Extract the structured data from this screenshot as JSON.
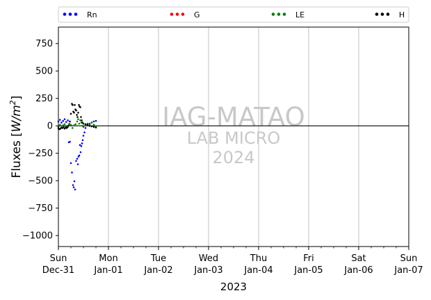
{
  "chart_data": {
    "type": "scatter",
    "title": "",
    "xlabel": "2023",
    "ylabel_main": "Fluxes [",
    "ylabel_unit": "W/m",
    "ylabel_exp": "2",
    "ylabel_close": "]",
    "xlim": [
      "2022-12-31",
      "2023-01-07"
    ],
    "ylim": [
      -1100,
      900
    ],
    "yticks": [
      750,
      500,
      250,
      0,
      -250,
      -500,
      -750,
      -1000
    ],
    "xticks": [
      {
        "day": "Sun",
        "date": "Dec-31"
      },
      {
        "day": "Mon",
        "date": "Jan-01"
      },
      {
        "day": "Tue",
        "date": "Jan-02"
      },
      {
        "day": "Wed",
        "date": "Jan-03"
      },
      {
        "day": "Thu",
        "date": "Jan-04"
      },
      {
        "day": "Fri",
        "date": "Jan-05"
      },
      {
        "day": "Sat",
        "date": "Jan-06"
      },
      {
        "day": "Sun",
        "date": "Jan-07"
      }
    ],
    "grid": "vertical",
    "zero_line": true,
    "legend_position": "top (horizontal, above plot)",
    "watermark": [
      "IAG-MATAO",
      "LAB MICRO",
      "2024"
    ],
    "series": [
      {
        "name": "Rn",
        "color": "#0000ff",
        "points": [
          [
            "2022-12-31T00:00",
            40
          ],
          [
            "2022-12-31T00:45",
            55
          ],
          [
            "2022-12-31T01:30",
            30
          ],
          [
            "2022-12-31T02:15",
            45
          ],
          [
            "2022-12-31T03:00",
            60
          ],
          [
            "2022-12-31T03:45",
            35
          ],
          [
            "2022-12-31T04:30",
            50
          ],
          [
            "2022-12-31T05:00",
            -150
          ],
          [
            "2022-12-31T05:30",
            -145
          ],
          [
            "2022-12-31T06:00",
            -340
          ],
          [
            "2022-12-31T06:30",
            -425
          ],
          [
            "2022-12-31T07:00",
            -540
          ],
          [
            "2022-12-31T07:20",
            -560
          ],
          [
            "2022-12-31T07:40",
            -505
          ],
          [
            "2022-12-31T08:00",
            -580
          ],
          [
            "2022-12-31T08:30",
            -320
          ],
          [
            "2022-12-31T09:00",
            -300
          ],
          [
            "2022-12-31T09:20",
            -350
          ],
          [
            "2022-12-31T09:40",
            -280
          ],
          [
            "2022-12-31T10:00",
            -270
          ],
          [
            "2022-12-31T10:20",
            -175
          ],
          [
            "2022-12-31T10:40",
            -240
          ],
          [
            "2022-12-31T11:00",
            -185
          ],
          [
            "2022-12-31T11:20",
            -160
          ],
          [
            "2022-12-31T11:40",
            -130
          ],
          [
            "2022-12-31T12:00",
            -90
          ],
          [
            "2022-12-31T12:30",
            -60
          ],
          [
            "2022-12-31T13:00",
            -20
          ],
          [
            "2022-12-31T14:00",
            10
          ],
          [
            "2022-12-31T15:00",
            20
          ],
          [
            "2022-12-31T16:00",
            30
          ],
          [
            "2022-12-31T17:00",
            40
          ],
          [
            "2022-12-31T18:00",
            45
          ]
        ]
      },
      {
        "name": "G",
        "color": "#ff0000",
        "points": []
      },
      {
        "name": "LE",
        "color": "#008000",
        "points": [
          [
            "2022-12-31T00:00",
            -5
          ],
          [
            "2022-12-31T00:45",
            10
          ],
          [
            "2022-12-31T01:30",
            -15
          ],
          [
            "2022-12-31T02:15",
            5
          ],
          [
            "2022-12-31T03:00",
            15
          ],
          [
            "2022-12-31T03:45",
            -10
          ],
          [
            "2022-12-31T04:30",
            0
          ],
          [
            "2022-12-31T05:15",
            20
          ],
          [
            "2022-12-31T06:00",
            10
          ],
          [
            "2022-12-31T06:45",
            -20
          ],
          [
            "2022-12-31T07:30",
            5
          ],
          [
            "2022-12-31T08:15",
            15
          ],
          [
            "2022-12-31T09:00",
            40
          ],
          [
            "2022-12-31T09:30",
            60
          ],
          [
            "2022-12-31T10:00",
            20
          ],
          [
            "2022-12-31T10:30",
            50
          ],
          [
            "2022-12-31T11:00",
            30
          ],
          [
            "2022-12-31T11:30",
            0
          ],
          [
            "2022-12-31T12:00",
            -10
          ],
          [
            "2022-12-31T13:00",
            10
          ],
          [
            "2022-12-31T14:00",
            20
          ],
          [
            "2022-12-31T15:00",
            15
          ],
          [
            "2022-12-31T16:00",
            30
          ],
          [
            "2022-12-31T17:00",
            10
          ],
          [
            "2022-12-31T18:00",
            -5
          ]
        ]
      },
      {
        "name": "H",
        "color": "#000000",
        "points": [
          [
            "2022-12-31T00:00",
            -20
          ],
          [
            "2022-12-31T00:30",
            -30
          ],
          [
            "2022-12-31T01:00",
            -25
          ],
          [
            "2022-12-31T01:30",
            -15
          ],
          [
            "2022-12-31T02:00",
            -20
          ],
          [
            "2022-12-31T02:30",
            -10
          ],
          [
            "2022-12-31T03:00",
            -25
          ],
          [
            "2022-12-31T03:30",
            -15
          ],
          [
            "2022-12-31T04:00",
            -20
          ],
          [
            "2022-12-31T04:30",
            -10
          ],
          [
            "2022-12-31T05:00",
            5
          ],
          [
            "2022-12-31T05:30",
            40
          ],
          [
            "2022-12-31T06:00",
            110
          ],
          [
            "2022-12-31T06:30",
            200
          ],
          [
            "2022-12-31T06:50",
            190
          ],
          [
            "2022-12-31T07:10",
            130
          ],
          [
            "2022-12-31T07:30",
            120
          ],
          [
            "2022-12-31T07:50",
            190
          ],
          [
            "2022-12-31T08:10",
            150
          ],
          [
            "2022-12-31T08:30",
            140
          ],
          [
            "2022-12-31T08:50",
            100
          ],
          [
            "2022-12-31T09:10",
            80
          ],
          [
            "2022-12-31T09:30",
            120
          ],
          [
            "2022-12-31T09:50",
            190
          ],
          [
            "2022-12-31T10:10",
            175
          ],
          [
            "2022-12-31T10:30",
            170
          ],
          [
            "2022-12-31T10:50",
            80
          ],
          [
            "2022-12-31T11:10",
            50
          ],
          [
            "2022-12-31T11:30",
            30
          ],
          [
            "2022-12-31T12:00",
            20
          ],
          [
            "2022-12-31T13:00",
            15
          ],
          [
            "2022-12-31T14:00",
            10
          ],
          [
            "2022-12-31T15:00",
            0
          ],
          [
            "2022-12-31T16:00",
            -5
          ],
          [
            "2022-12-31T17:00",
            -10
          ],
          [
            "2022-12-31T18:00",
            -15
          ]
        ]
      }
    ]
  }
}
